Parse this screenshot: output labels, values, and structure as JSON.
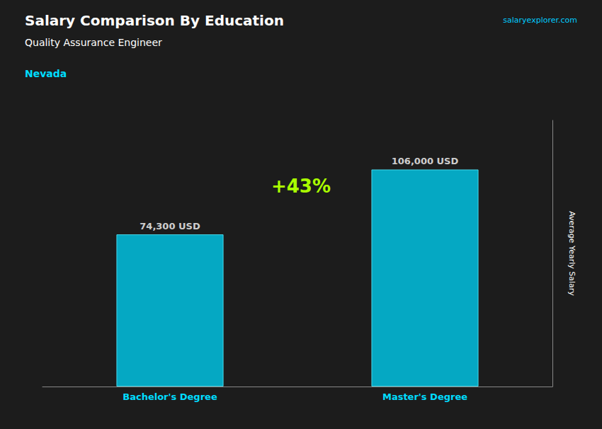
{
  "chart_data": {
    "type": "bar",
    "title": "Salary Comparison By Education",
    "subtitle": "Quality Assurance Engineer",
    "annotations": [
      "Nevada",
      "+43%",
      "salaryexplorer.com"
    ],
    "y_label": "Average Yearly Salary",
    "categories": [
      "Bachelor's Degree",
      "Master's Degree"
    ],
    "values": [
      74300,
      106000
    ],
    "value_labels": [
      "74,300 USD",
      "106,000 USD"
    ],
    "color": "#00ccee",
    "ylim": [
      0,
      130000
    ],
    "grid": false,
    "data_labels": true,
    "tick_labels": "x"
  }
}
